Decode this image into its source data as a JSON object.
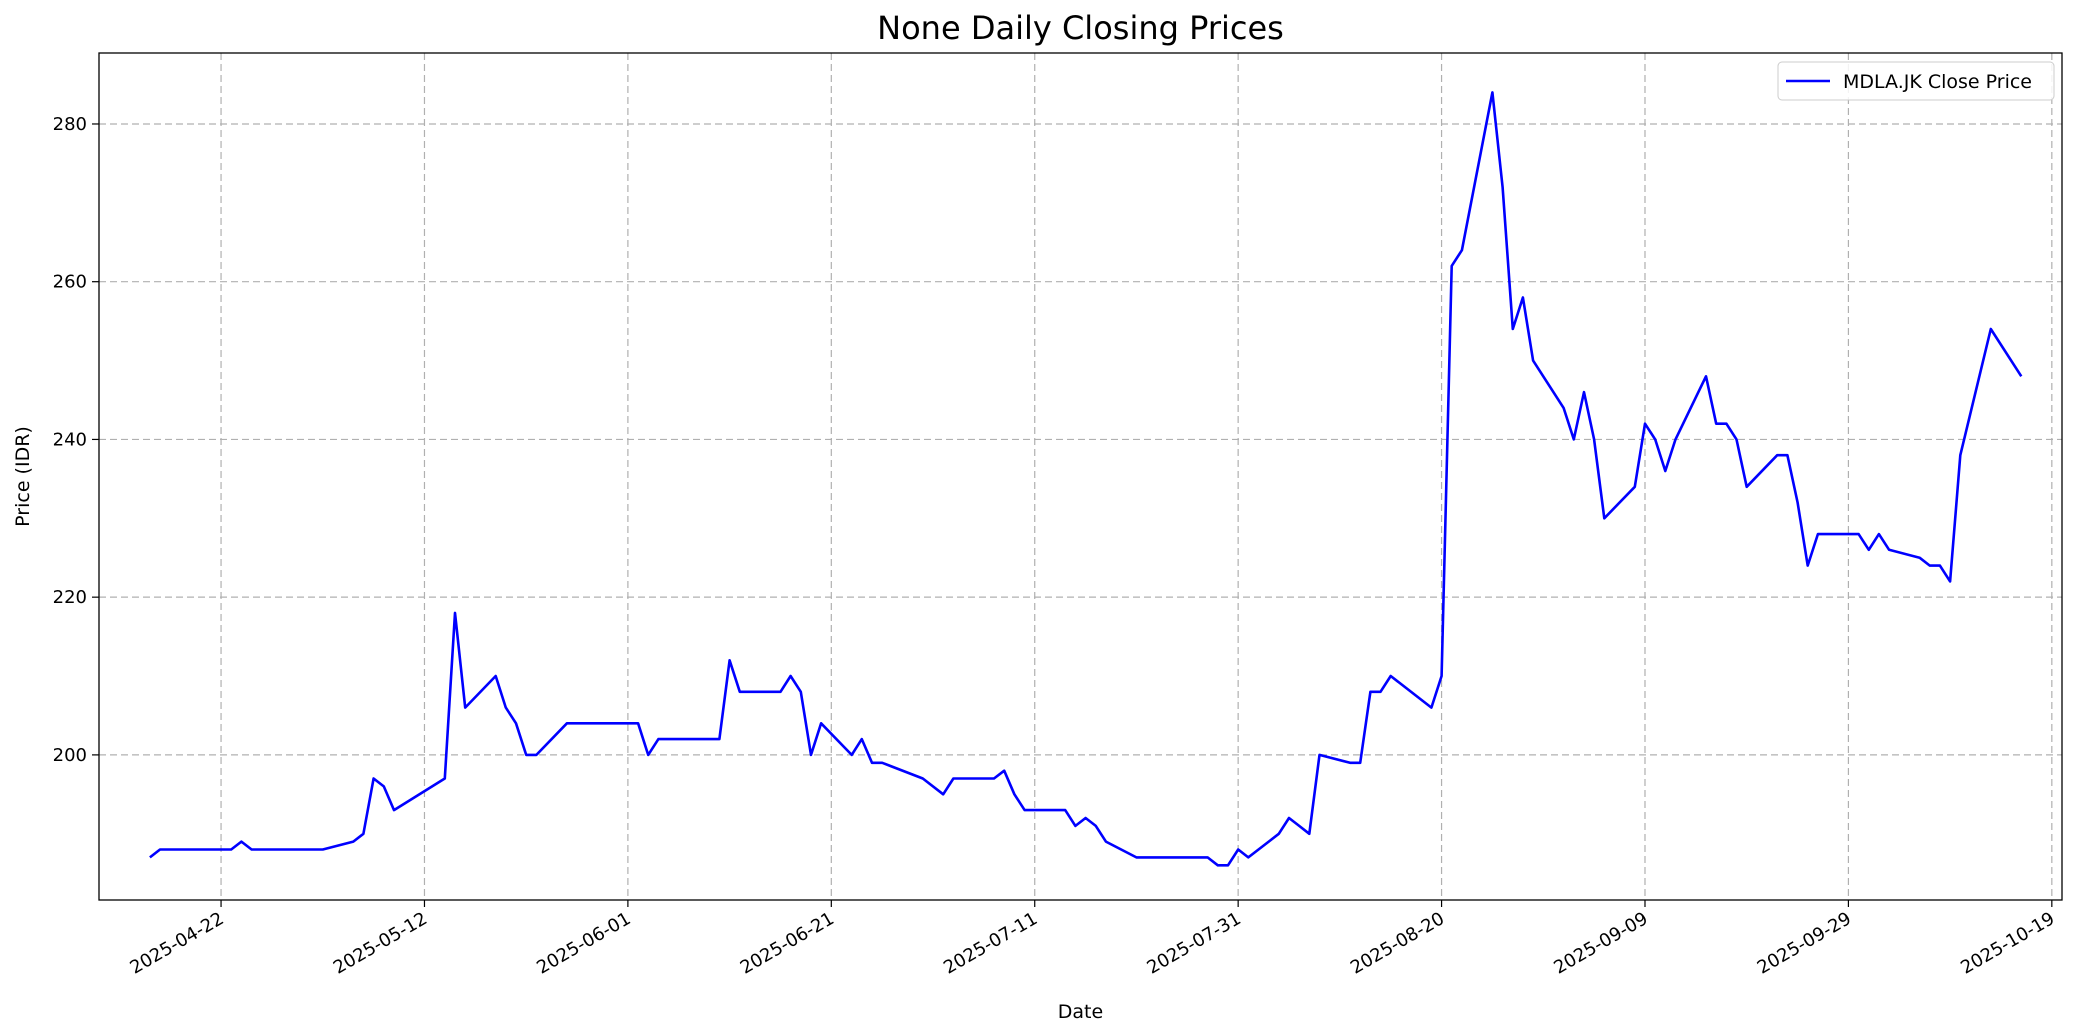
{
  "chart_data": {
    "type": "line",
    "title": "None Daily Closing Prices",
    "xlabel": "Date",
    "ylabel": "Price (IDR)",
    "grid": true,
    "legend_position": "top-right",
    "line_color": "#0000ff",
    "xlim": [
      "2025-04-10",
      "2025-10-20"
    ],
    "ylim": [
      181.6,
      289.0
    ],
    "x_ticks": [
      "2025-04-22",
      "2025-05-12",
      "2025-06-01",
      "2025-06-21",
      "2025-07-11",
      "2025-07-31",
      "2025-08-20",
      "2025-09-09",
      "2025-09-29",
      "2025-10-19"
    ],
    "y_ticks": [
      200,
      220,
      240,
      260,
      280
    ],
    "y_tick_labels": [
      "200",
      "220",
      "240",
      "260",
      "280"
    ],
    "series": [
      {
        "name": "MDLA.JK Close Price",
        "points": [
          [
            "2025-04-15",
            187
          ],
          [
            "2025-04-16",
            188
          ],
          [
            "2025-04-17",
            188
          ],
          [
            "2025-04-21",
            188
          ],
          [
            "2025-04-22",
            188
          ],
          [
            "2025-04-23",
            188
          ],
          [
            "2025-04-24",
            189
          ],
          [
            "2025-04-25",
            188
          ],
          [
            "2025-04-28",
            188
          ],
          [
            "2025-04-29",
            188
          ],
          [
            "2025-04-30",
            188
          ],
          [
            "2025-05-02",
            188
          ],
          [
            "2025-05-05",
            189
          ],
          [
            "2025-05-06",
            190
          ],
          [
            "2025-05-07",
            197
          ],
          [
            "2025-05-08",
            196
          ],
          [
            "2025-05-09",
            193
          ],
          [
            "2025-05-14",
            197
          ],
          [
            "2025-05-15",
            218
          ],
          [
            "2025-05-16",
            206
          ],
          [
            "2025-05-19",
            210
          ],
          [
            "2025-05-20",
            206
          ],
          [
            "2025-05-21",
            204
          ],
          [
            "2025-05-22",
            200
          ],
          [
            "2025-05-23",
            200
          ],
          [
            "2025-05-26",
            204
          ],
          [
            "2025-05-27",
            204
          ],
          [
            "2025-06-02",
            204
          ],
          [
            "2025-06-03",
            200
          ],
          [
            "2025-06-04",
            202
          ],
          [
            "2025-06-05",
            202
          ],
          [
            "2025-06-10",
            202
          ],
          [
            "2025-06-11",
            212
          ],
          [
            "2025-06-12",
            208
          ],
          [
            "2025-06-13",
            208
          ],
          [
            "2025-06-16",
            208
          ],
          [
            "2025-06-17",
            210
          ],
          [
            "2025-06-18",
            208
          ],
          [
            "2025-06-19",
            200
          ],
          [
            "2025-06-20",
            204
          ],
          [
            "2025-06-23",
            200
          ],
          [
            "2025-06-24",
            202
          ],
          [
            "2025-06-25",
            199
          ],
          [
            "2025-06-26",
            199
          ],
          [
            "2025-06-30",
            197
          ],
          [
            "2025-07-02",
            195
          ],
          [
            "2025-07-03",
            197
          ],
          [
            "2025-07-04",
            197
          ],
          [
            "2025-07-07",
            197
          ],
          [
            "2025-07-08",
            198
          ],
          [
            "2025-07-09",
            195
          ],
          [
            "2025-07-10",
            193
          ],
          [
            "2025-07-11",
            193
          ],
          [
            "2025-07-14",
            193
          ],
          [
            "2025-07-15",
            191
          ],
          [
            "2025-07-16",
            192
          ],
          [
            "2025-07-17",
            191
          ],
          [
            "2025-07-18",
            189
          ],
          [
            "2025-07-21",
            187
          ],
          [
            "2025-07-22",
            187
          ],
          [
            "2025-07-23",
            187
          ],
          [
            "2025-07-24",
            187
          ],
          [
            "2025-07-25",
            187
          ],
          [
            "2025-07-28",
            187
          ],
          [
            "2025-07-29",
            186
          ],
          [
            "2025-07-30",
            186
          ],
          [
            "2025-07-31",
            188
          ],
          [
            "2025-08-01",
            187
          ],
          [
            "2025-08-04",
            190
          ],
          [
            "2025-08-05",
            192
          ],
          [
            "2025-08-06",
            191
          ],
          [
            "2025-08-07",
            190
          ],
          [
            "2025-08-08",
            200
          ],
          [
            "2025-08-11",
            199
          ],
          [
            "2025-08-12",
            199
          ],
          [
            "2025-08-13",
            208
          ],
          [
            "2025-08-14",
            208
          ],
          [
            "2025-08-15",
            210
          ],
          [
            "2025-08-19",
            206
          ],
          [
            "2025-08-20",
            210
          ],
          [
            "2025-08-21",
            262
          ],
          [
            "2025-08-22",
            264
          ],
          [
            "2025-08-25",
            284
          ],
          [
            "2025-08-26",
            272
          ],
          [
            "2025-08-27",
            254
          ],
          [
            "2025-08-28",
            258
          ],
          [
            "2025-08-29",
            250
          ],
          [
            "2025-09-01",
            244
          ],
          [
            "2025-09-02",
            240
          ],
          [
            "2025-09-03",
            246
          ],
          [
            "2025-09-04",
            240
          ],
          [
            "2025-09-05",
            230
          ],
          [
            "2025-09-08",
            234
          ],
          [
            "2025-09-09",
            242
          ],
          [
            "2025-09-10",
            240
          ],
          [
            "2025-09-11",
            236
          ],
          [
            "2025-09-12",
            240
          ],
          [
            "2025-09-15",
            248
          ],
          [
            "2025-09-16",
            242
          ],
          [
            "2025-09-17",
            242
          ],
          [
            "2025-09-18",
            240
          ],
          [
            "2025-09-19",
            234
          ],
          [
            "2025-09-22",
            238
          ],
          [
            "2025-09-23",
            238
          ],
          [
            "2025-09-24",
            232
          ],
          [
            "2025-09-25",
            224
          ],
          [
            "2025-09-26",
            228
          ],
          [
            "2025-09-29",
            228
          ],
          [
            "2025-09-30",
            228
          ],
          [
            "2025-10-01",
            226
          ],
          [
            "2025-10-02",
            228
          ],
          [
            "2025-10-03",
            226
          ],
          [
            "2025-10-06",
            225
          ],
          [
            "2025-10-07",
            224
          ],
          [
            "2025-10-08",
            224
          ],
          [
            "2025-10-09",
            222
          ],
          [
            "2025-10-10",
            238
          ],
          [
            "2025-10-13",
            254
          ],
          [
            "2025-10-16",
            248
          ]
        ]
      }
    ]
  }
}
